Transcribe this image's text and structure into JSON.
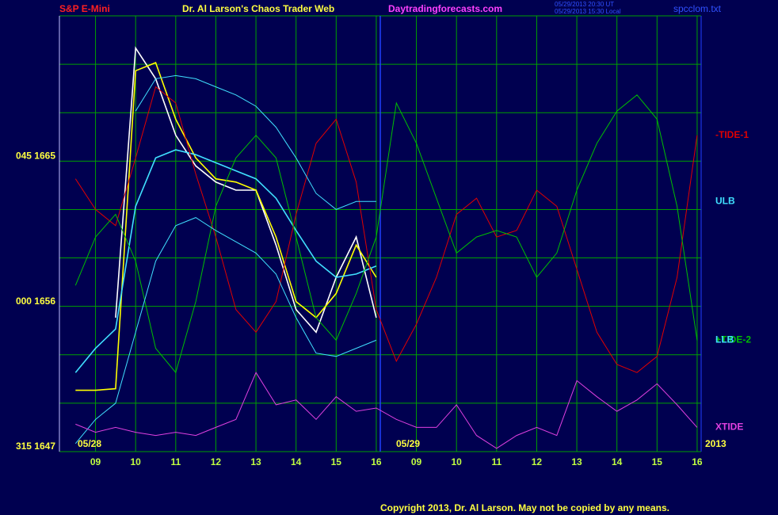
{
  "chart_data": {
    "type": "line",
    "title": "Dr. Al Larson's Chaos Trader Web",
    "symbol": "S&P E-Mini",
    "website": "Daytradingforecasts.com",
    "timestamps": [
      "05/29/2013 20:30 UT",
      "05/29/2013 15:30 Local"
    ],
    "filename": "spcclom.txt",
    "copyright": "Copyright 2013, Dr. Al Larson. May not be copied by any means.",
    "date_labels": [
      "05/28",
      "05/29"
    ],
    "year": "2013",
    "day_break": 8.1,
    "x": [
      0.5,
      1,
      1.5,
      2,
      2.5,
      3,
      3.5,
      4,
      4.5,
      5,
      5.5,
      6,
      6.5,
      7,
      7.5,
      8,
      8.5,
      9,
      9.5,
      10,
      10.5,
      11,
      11.5,
      12,
      12.5,
      13,
      13.5,
      14,
      14.5,
      15,
      15.5,
      16
    ],
    "xlim": [
      0.1,
      16.1
    ],
    "xticks": [
      {
        "value": 1,
        "label": "09"
      },
      {
        "value": 2,
        "label": "10"
      },
      {
        "value": 3,
        "label": "11"
      },
      {
        "value": 4,
        "label": "12"
      },
      {
        "value": 5,
        "label": "13"
      },
      {
        "value": 6,
        "label": "14"
      },
      {
        "value": 7,
        "label": "15"
      },
      {
        "value": 8,
        "label": "16"
      },
      {
        "value": 9,
        "label": "09"
      },
      {
        "value": 10,
        "label": "10"
      },
      {
        "value": 11,
        "label": "11"
      },
      {
        "value": 12,
        "label": "12"
      },
      {
        "value": 13,
        "label": "13"
      },
      {
        "value": 14,
        "label": "14"
      },
      {
        "value": 15,
        "label": "15"
      },
      {
        "value": 16,
        "label": "16"
      }
    ],
    "ylim": [
      1647,
      1674
    ],
    "yticks": [
      {
        "value": 1647,
        "label": "315 1647"
      },
      {
        "value": 1656,
        "label": "000 1656"
      },
      {
        "value": 1665,
        "label": "045 1665"
      }
    ],
    "ygrid": [
      1647,
      1650,
      1653,
      1656,
      1659,
      1662,
      1665,
      1668,
      1671,
      1674
    ],
    "grid": true,
    "series": [
      {
        "color": "#ffffff",
        "values": [
          null,
          null,
          1655.3,
          1672.0,
          1670.1,
          1666.6,
          1664.7,
          1663.7,
          1663.2,
          1663.2,
          1659.8,
          1655.8,
          1654.4,
          1657.8,
          1660.3,
          1655.3,
          null,
          null,
          null,
          null,
          null,
          null,
          null,
          null,
          null,
          null,
          null,
          null,
          null,
          null,
          null,
          null
        ]
      },
      {
        "color": "#ffff00",
        "values": [
          1650.8,
          1650.8,
          1650.9,
          1670.6,
          1671.1,
          1667.6,
          1665.2,
          1663.9,
          1663.7,
          1663.2,
          1660.3,
          1656.3,
          1655.3,
          1656.8,
          1659.8,
          1657.8,
          null,
          null,
          null,
          null,
          null,
          null,
          null,
          null,
          null,
          null,
          null,
          null,
          null,
          null,
          null,
          null
        ]
      },
      {
        "color": "#40e0ff",
        "values": [
          1651.9,
          1653.4,
          1654.6,
          1662.2,
          1665.2,
          1665.7,
          1665.4,
          1664.9,
          1664.4,
          1663.9,
          1662.7,
          1660.7,
          1658.8,
          1657.8,
          1658.0,
          1658.5,
          null,
          null,
          null,
          null,
          null,
          null,
          null,
          null,
          null,
          null,
          null,
          null,
          null,
          null,
          null,
          null
        ]
      },
      {
        "name": "-TIDE-1",
        "color": "#e00000",
        "values": [
          1663.9,
          1662.0,
          1661.0,
          1665.2,
          1669.6,
          1668.6,
          1664.2,
          1660.3,
          1655.8,
          1654.4,
          1656.3,
          1661.7,
          1666.1,
          1667.6,
          1663.7,
          1655.8,
          1652.6,
          1654.9,
          1657.8,
          1661.7,
          1662.7,
          1660.3,
          1660.7,
          1663.2,
          1662.2,
          1658.3,
          1654.4,
          1652.4,
          1651.9,
          1652.9,
          1657.8,
          1666.6
        ]
      },
      {
        "name": "ULB",
        "color": "#40e0ff",
        "values": [
          null,
          null,
          null,
          1668.1,
          1670.1,
          1670.3,
          1670.1,
          1669.6,
          1669.1,
          1668.4,
          1667.1,
          1665.2,
          1663.0,
          1662.0,
          1662.5,
          1662.5,
          null,
          null,
          null,
          null,
          null,
          null,
          null,
          null,
          null,
          null,
          null,
          null,
          null,
          null,
          null,
          null
        ]
      },
      {
        "name": "+TIDE-2",
        "color": "#00c000",
        "values": [
          1657.3,
          1660.3,
          1661.7,
          1658.8,
          1653.4,
          1651.9,
          1656.3,
          1662.2,
          1665.2,
          1666.6,
          1665.2,
          1660.3,
          1655.3,
          1653.9,
          1656.8,
          1660.3,
          1668.6,
          1666.1,
          1662.7,
          1659.3,
          1660.3,
          1660.7,
          1660.3,
          1657.8,
          1659.3,
          1663.2,
          1666.1,
          1668.1,
          1669.1,
          1667.6,
          1662.2,
          1653.9
        ]
      },
      {
        "name": "LLB",
        "color": "#40e0ff",
        "values": [
          1647.5,
          1649.0,
          1650.0,
          1654.4,
          1658.8,
          1661.0,
          1661.5,
          1660.7,
          1660.0,
          1659.3,
          1658.0,
          1655.3,
          1653.1,
          1652.9,
          1653.4,
          1653.9,
          null,
          null,
          null,
          null,
          null,
          null,
          null,
          null,
          null,
          null,
          null,
          null,
          null,
          null,
          null,
          null
        ]
      },
      {
        "name": "XTIDE",
        "color": "#e040e0",
        "values": [
          1648.7,
          1648.2,
          1648.5,
          1648.2,
          1648.0,
          1648.2,
          1648.0,
          1648.5,
          1649.0,
          1651.9,
          1649.9,
          1650.2,
          1649.0,
          1650.4,
          1649.5,
          1649.7,
          1649.0,
          1648.5,
          1648.5,
          1649.9,
          1648.0,
          1647.2,
          1648.0,
          1648.5,
          1648.0,
          1651.4,
          1650.4,
          1649.5,
          1650.2,
          1651.2,
          1649.9,
          1648.5
        ]
      }
    ]
  }
}
